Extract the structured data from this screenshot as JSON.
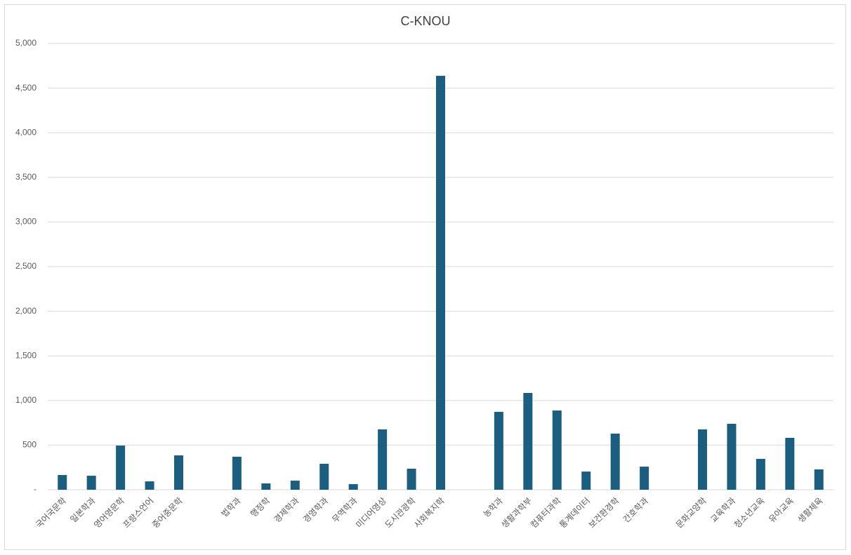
{
  "chart_data": {
    "type": "bar",
    "title": "C-KNOU",
    "categories": [
      "국어국문학",
      "일본학과",
      "영어영문학",
      "프랑스언어",
      "중어중문학",
      null,
      "법학과",
      "행정학",
      "경제학과",
      "경영학과",
      "무역학과",
      "미디어영상",
      "도시관광학",
      "사회복지학",
      null,
      "농학과",
      "생활과학부",
      "컴퓨터과학",
      "통계데이터",
      "보건환경학",
      "간호학과",
      null,
      "문화교양학",
      "교육학과",
      "청소년교육",
      "유아교육",
      "생활체육"
    ],
    "values": [
      165,
      157,
      495,
      94,
      385,
      null,
      370,
      71,
      102,
      291,
      63,
      676,
      236,
      4638,
      null,
      873,
      1085,
      888,
      204,
      629,
      259,
      null,
      676,
      739,
      346,
      582,
      228
    ],
    "color": "#1b5e80",
    "ylim": [
      0,
      5000
    ],
    "yticks": [
      {
        "value": 0,
        "label": "-"
      },
      {
        "value": 500,
        "label": "500"
      },
      {
        "value": 1000,
        "label": "1,000"
      },
      {
        "value": 1500,
        "label": "1,500"
      },
      {
        "value": 2000,
        "label": "2,000"
      },
      {
        "value": 2500,
        "label": "2,500"
      },
      {
        "value": 3000,
        "label": "3,000"
      },
      {
        "value": 3500,
        "label": "3,500"
      },
      {
        "value": 4000,
        "label": "4,000"
      },
      {
        "value": 4500,
        "label": "4,500"
      },
      {
        "value": 5000,
        "label": "5,000"
      }
    ],
    "grid": true
  }
}
